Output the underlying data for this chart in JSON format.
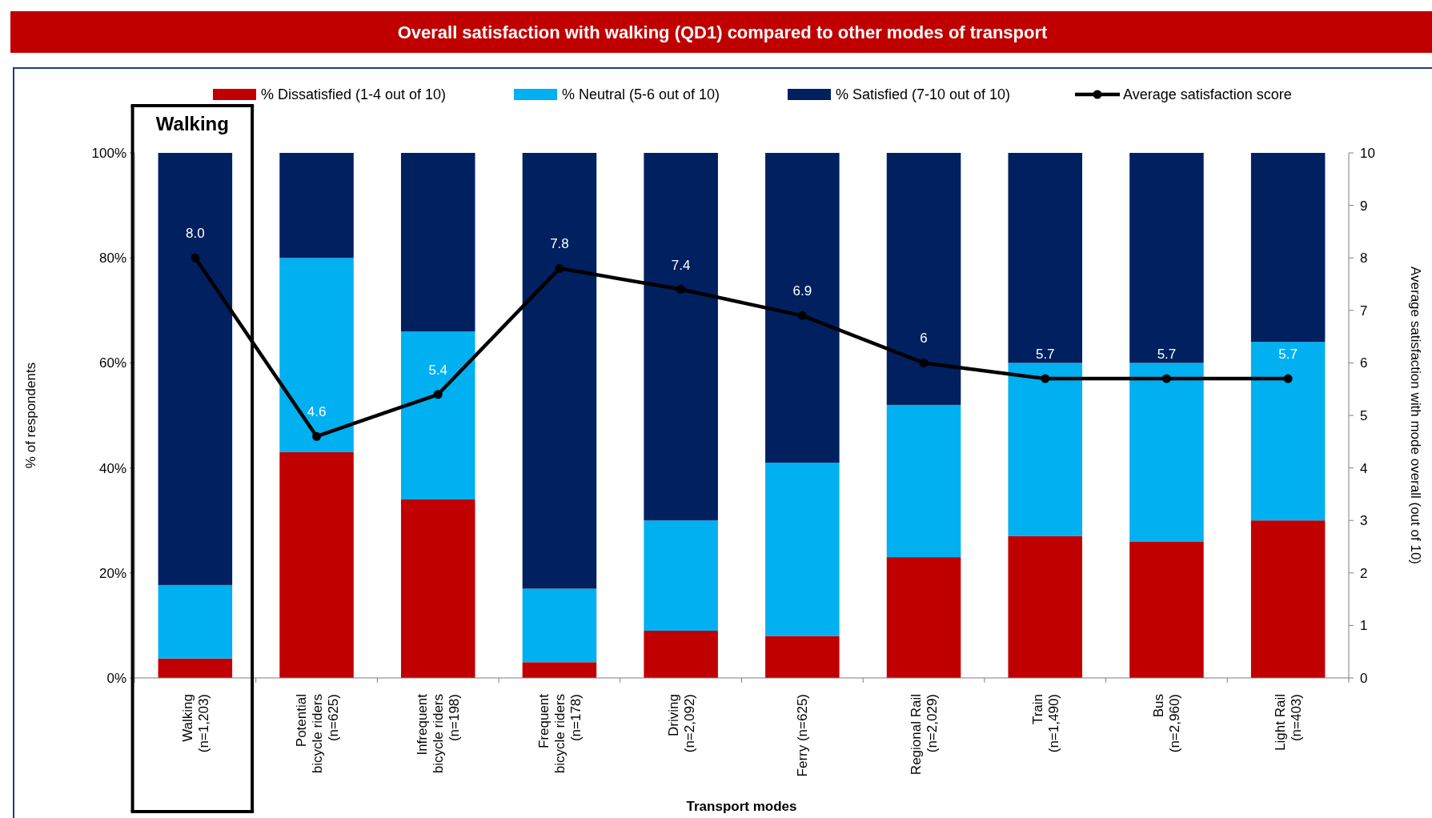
{
  "chart_data": {
    "type": "bar",
    "stacked": true,
    "title": "Overall satisfaction with walking (QD1) compared to other modes of transport",
    "xlabel": "Transport modes",
    "ylabel": "% of respondents",
    "y2label": "Average satisfaction with mode overall (out of 10)",
    "categories": [
      "Walking\n(n=1,203)",
      "Potential\nbicycle riders\n(n=625)",
      "Infrequent\nbicycle riders\n(n=198)",
      "Frequent\nbicycle riders\n(n=178)",
      "Driving\n(n=2,092)",
      "Ferry (n=625)",
      "Regional Rail\n(n=2,029)",
      "Train\n(n=1,490)",
      "Bus\n(n=2,960)",
      "Light Rail\n(n=403)"
    ],
    "series": [
      {
        "name": "% Dissatisfied (1-4 out of 10)",
        "color": "#c00000",
        "values": [
          3.7,
          43,
          34,
          3,
          9,
          8,
          23,
          27,
          26,
          30
        ]
      },
      {
        "name": "% Neutral (5-6 out of 10)",
        "color": "#00b0f0",
        "values": [
          14,
          37,
          32,
          14,
          21,
          33,
          29,
          33,
          34,
          34
        ]
      },
      {
        "name": "% Satisfied (7-10 out of 10)",
        "color": "#002060",
        "values": [
          82.3,
          20,
          34,
          83,
          70,
          59,
          48,
          40,
          40,
          36
        ]
      },
      {
        "name": "Average satisfaction score",
        "type": "line",
        "axis": "y2",
        "color": "#000000",
        "marker": "circle",
        "values": [
          8.0,
          4.6,
          5.4,
          7.8,
          7.4,
          6.9,
          6,
          5.7,
          5.7,
          5.7
        ],
        "value_labels": [
          "8.0",
          "4.6",
          "5.4",
          "7.8",
          "7.4",
          "6.9",
          "6",
          "5.7",
          "5.7",
          "5.7"
        ]
      }
    ],
    "ylim": [
      0,
      100
    ],
    "yticks": [
      {
        "value": 0,
        "label": "0%"
      },
      {
        "value": 20,
        "label": "20%"
      },
      {
        "value": 40,
        "label": "40%"
      },
      {
        "value": 60,
        "label": "60%"
      },
      {
        "value": 80,
        "label": "80%"
      },
      {
        "value": 100,
        "label": "100%"
      }
    ],
    "y2lim": [
      0,
      10
    ],
    "y2ticks": [
      0,
      1,
      2,
      3,
      4,
      5,
      6,
      7,
      8,
      9,
      10
    ],
    "annotations": [
      "Walking"
    ],
    "legend": "top",
    "grid": false
  }
}
